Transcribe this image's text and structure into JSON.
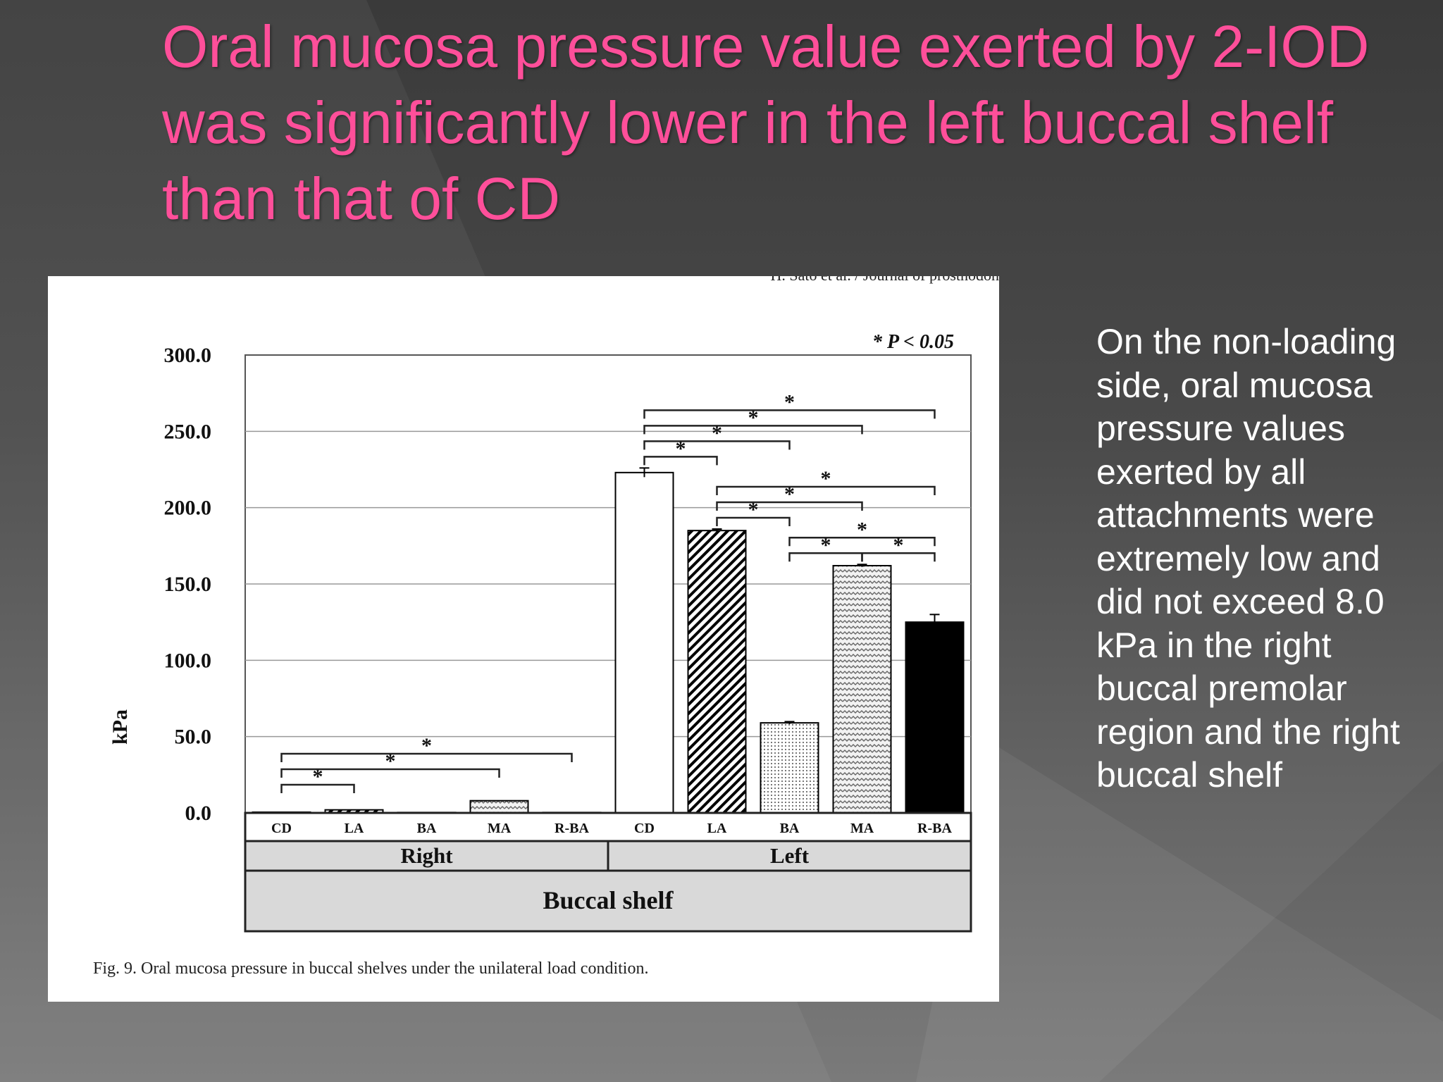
{
  "slide": {
    "title": "Oral mucosa pressure value exerted by 2-IOD was significantly lower in the left buccal shelf than that of CD",
    "side_text": " On the non-loading side, oral mucosa pressure values exerted by all attachments were extremely low and did not exceed 8.0 kPa in the right buccal premolar region and the right buccal shelf",
    "title_color": "#ff4f9a",
    "text_color": "#ffffff"
  },
  "figure": {
    "header_text": "H. Sato et al. / Journal of prosthodon",
    "caption": "Fig. 9. Oral mucosa pressure in buccal shelves under the unilateral load condition.",
    "significance_note": "* P < 0.05"
  },
  "chart_data": {
    "type": "bar",
    "title": "",
    "ylabel": "kPa",
    "ylim": [
      0,
      300
    ],
    "yticks": [
      "0.0",
      "50.0",
      "100.0",
      "150.0",
      "200.0",
      "250.0",
      "300.0"
    ],
    "grid": true,
    "categories": [
      "CD",
      "LA",
      "BA",
      "MA",
      "R-BA",
      "CD",
      "LA",
      "BA",
      "MA",
      "R-BA"
    ],
    "groups": [
      "Right",
      "Left"
    ],
    "group_axis_label": "Buccal shelf",
    "values": [
      0.5,
      2.0,
      0.3,
      8.0,
      0.3,
      223.0,
      185.0,
      59.0,
      162.0,
      125.0
    ],
    "errors": [
      0.2,
      1.5,
      0.2,
      0.8,
      0.2,
      3.0,
      1.0,
      0.8,
      0.8,
      5.0
    ],
    "fills": [
      "white",
      "hatch",
      "dots",
      "wave",
      "black",
      "white",
      "hatch",
      "dots",
      "wave",
      "black"
    ],
    "significance_label": "*",
    "significance_brackets": [
      {
        "from": 0,
        "to": 1
      },
      {
        "from": 0,
        "to": 3
      },
      {
        "from": 0,
        "to": 4
      },
      {
        "from": 5,
        "to": 6
      },
      {
        "from": 5,
        "to": 7
      },
      {
        "from": 5,
        "to": 8
      },
      {
        "from": 5,
        "to": 9
      },
      {
        "from": 6,
        "to": 7
      },
      {
        "from": 6,
        "to": 8
      },
      {
        "from": 6,
        "to": 9
      },
      {
        "from": 7,
        "to": 8
      },
      {
        "from": 7,
        "to": 9
      },
      {
        "from": 8,
        "to": 9
      }
    ]
  }
}
